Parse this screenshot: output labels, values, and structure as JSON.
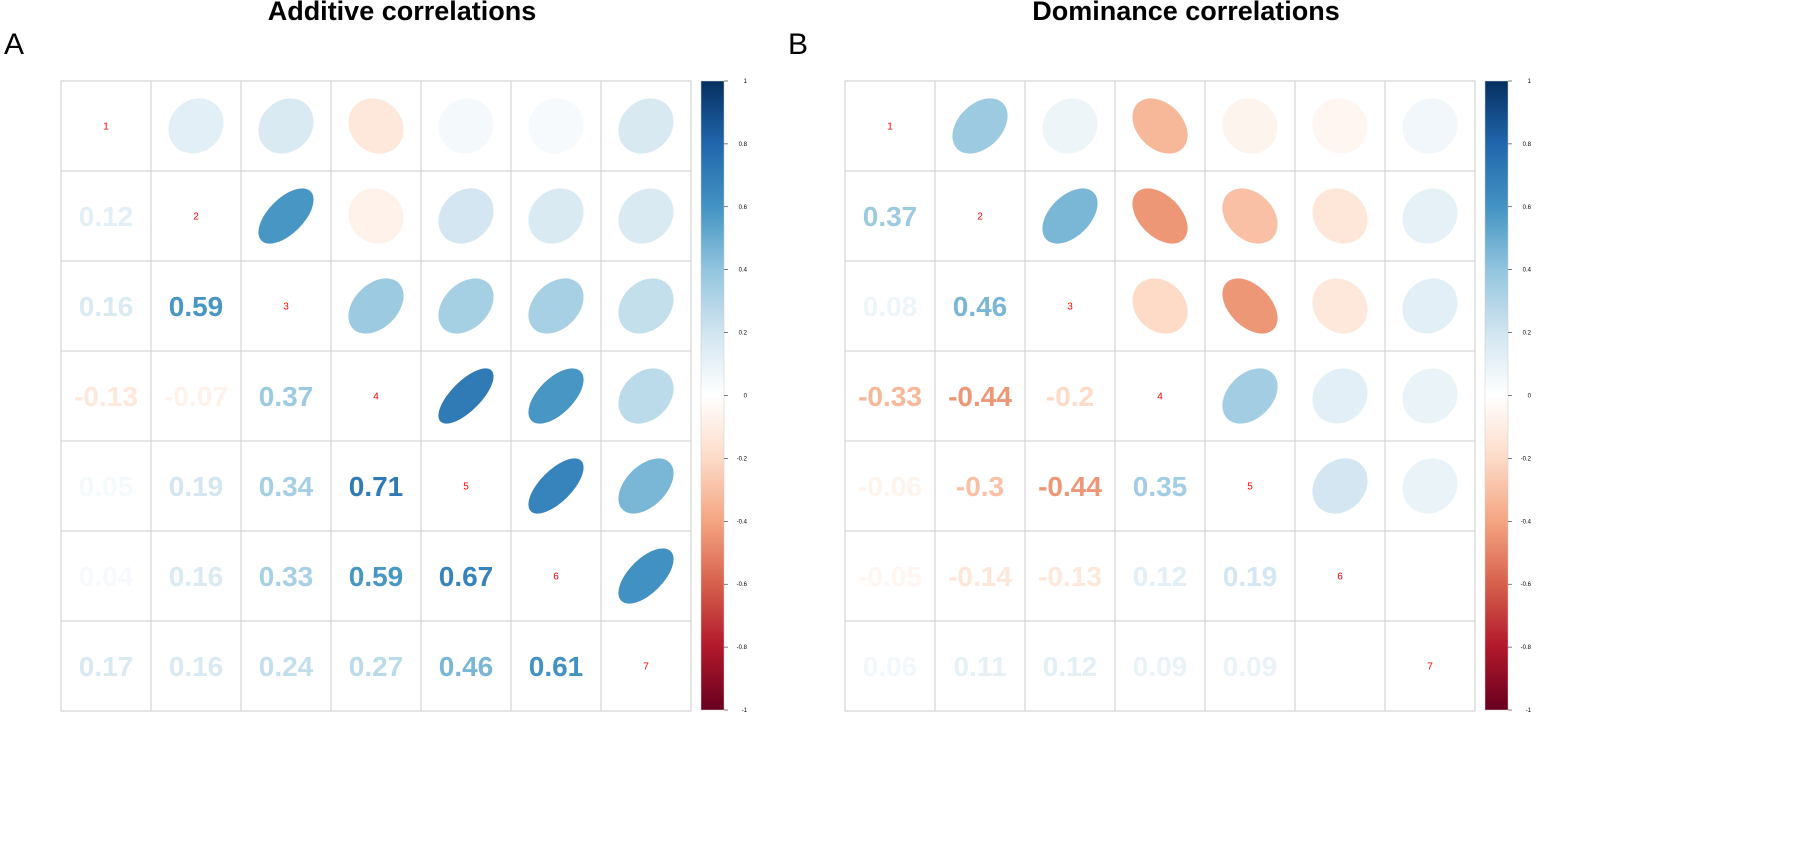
{
  "chart_data": [
    {
      "type": "heatmap",
      "panel_label": "A",
      "title": "Additive correlations",
      "variables": [
        "1",
        "2",
        "3",
        "4",
        "5",
        "6",
        "7"
      ],
      "matrix": [
        [
          1,
          0.12,
          0.16,
          -0.13,
          0.05,
          0.04,
          0.17
        ],
        [
          0.12,
          1,
          0.59,
          -0.07,
          0.19,
          0.16,
          0.16
        ],
        [
          0.16,
          0.59,
          1,
          0.37,
          0.34,
          0.33,
          0.24
        ],
        [
          -0.13,
          -0.07,
          0.37,
          1,
          0.71,
          0.59,
          0.27
        ],
        [
          0.05,
          0.19,
          0.34,
          0.71,
          1,
          0.67,
          0.46
        ],
        [
          0.04,
          0.16,
          0.33,
          0.59,
          0.67,
          1,
          0.61
        ],
        [
          0.17,
          0.16,
          0.24,
          0.27,
          0.46,
          0.61,
          1
        ]
      ],
      "lower": "number",
      "upper": "ellipse",
      "colorbar": {
        "range": [
          -1,
          1
        ],
        "ticks": [
          "1",
          "0.8",
          "0.6",
          "0.4",
          "0.2",
          "0",
          "-0.2",
          "-0.4",
          "-0.6",
          "-0.8",
          "-1"
        ]
      }
    },
    {
      "type": "heatmap",
      "panel_label": "B",
      "title": "Dominance correlations",
      "variables": [
        "1",
        "2",
        "3",
        "4",
        "5",
        "6",
        "7"
      ],
      "matrix": [
        [
          1,
          0.37,
          0.08,
          -0.33,
          -0.06,
          -0.05,
          0.06
        ],
        [
          0.37,
          1,
          0.46,
          -0.44,
          -0.3,
          -0.14,
          0.11
        ],
        [
          0.08,
          0.46,
          1,
          -0.2,
          -0.44,
          -0.13,
          0.12
        ],
        [
          -0.33,
          -0.44,
          -0.2,
          1,
          0.35,
          0.12,
          0.09
        ],
        [
          -0.06,
          -0.3,
          -0.44,
          0.35,
          1,
          0.19,
          0.09
        ],
        [
          -0.05,
          -0.14,
          -0.13,
          0.12,
          0.19,
          1,
          0
        ],
        [
          0.06,
          0.11,
          0.12,
          0.09,
          0.09,
          0,
          1
        ]
      ],
      "lower": "number",
      "upper": "ellipse",
      "colorbar": {
        "range": [
          -1,
          1
        ],
        "ticks": [
          "1",
          "0.8",
          "0.6",
          "0.4",
          "0.2",
          "0",
          "-0.2",
          "-0.4",
          "-0.6",
          "-0.8",
          "-1"
        ]
      }
    }
  ]
}
